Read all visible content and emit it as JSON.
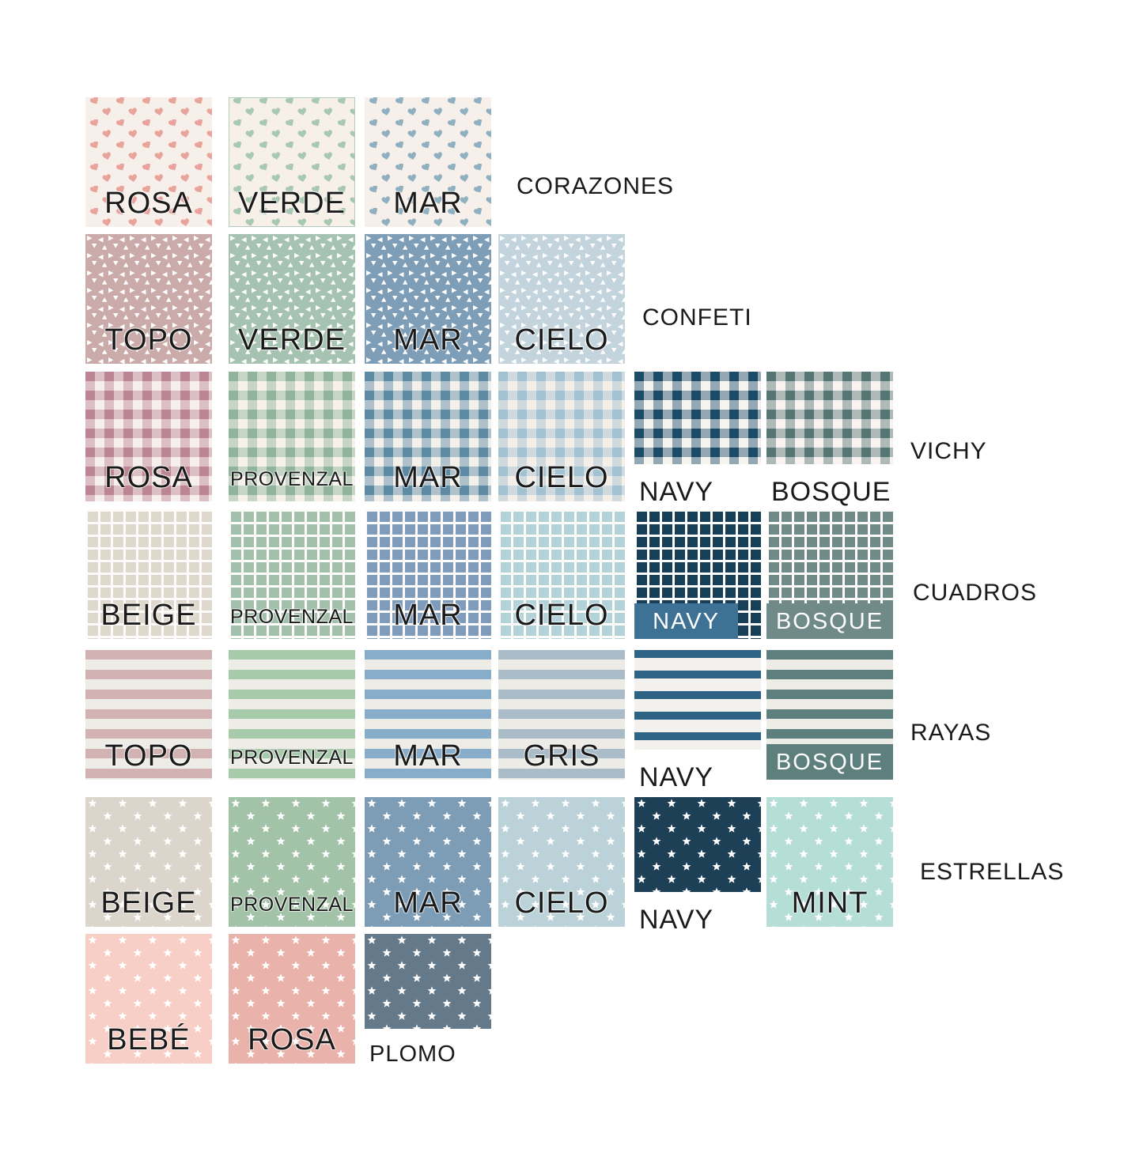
{
  "page": {
    "background": "#ffffff",
    "text_color": "#1a1a1a"
  },
  "rows": [
    {
      "group_label": "CORAZONES",
      "pattern": "hearts",
      "swatches": [
        {
          "label": "ROSA",
          "bg": "#f7f0ea",
          "fg": "#e8a39c",
          "label_style": "inside"
        },
        {
          "label": "VERDE",
          "bg": "#f6f0e9",
          "fg": "#a9c8b3",
          "label_style": "inside",
          "border": "#b2cdbb"
        },
        {
          "label": "MAR",
          "bg": "#f7f0ea",
          "fg": "#8fb0c0",
          "label_style": "inside"
        }
      ]
    },
    {
      "group_label": "CONFETI",
      "pattern": "confetti",
      "swatches": [
        {
          "label": "TOPO",
          "bg": "#cbabaa",
          "fg": "#ffffff",
          "label_style": "inside"
        },
        {
          "label": "VERDE",
          "bg": "#a6c3b2",
          "fg": "#ffffff",
          "label_style": "inside"
        },
        {
          "label": "MAR",
          "bg": "#7e9db6",
          "fg": "#ffffff",
          "label_style": "inside"
        },
        {
          "label": "CIELO",
          "bg": "#c4d4dd",
          "fg": "#ffffff",
          "label_style": "inside"
        }
      ]
    },
    {
      "group_label": "VICHY",
      "pattern": "vichy",
      "swatches": [
        {
          "label": "ROSA",
          "bg": "#f6efec",
          "fg": "#bb8595",
          "label_style": "inside"
        },
        {
          "label": "PROVENZAL",
          "bg": "#f6f1ea",
          "fg": "#8fb49b",
          "label_style": "inside",
          "small": true
        },
        {
          "label": "MAR",
          "bg": "#f3efe9",
          "fg": "#5d8aa5",
          "label_style": "inside"
        },
        {
          "label": "CIELO",
          "bg": "#f5efe9",
          "fg": "#a3c2d1",
          "label_style": "inside"
        },
        {
          "label": "NAVY",
          "bg": "#f7f3ef",
          "fg": "#1d4c68",
          "label_style": "below",
          "height": "short"
        },
        {
          "label": "BOSQUE",
          "bg": "#f7f3ef",
          "fg": "#567575",
          "label_style": "below",
          "height": "short"
        }
      ]
    },
    {
      "group_label": "CUADROS",
      "pattern": "grid",
      "swatches": [
        {
          "label": "BEIGE",
          "bg": "#fdfcfa",
          "fg": "#ded8cd",
          "label_style": "inside"
        },
        {
          "label": "PROVENZAL",
          "bg": "#fdfcfa",
          "fg": "#a3c0ad",
          "label_style": "inside",
          "small": true
        },
        {
          "label": "MAR",
          "bg": "#fdfcfa",
          "fg": "#7f9cbd",
          "label_style": "inside"
        },
        {
          "label": "CIELO",
          "bg": "#fdfcfa",
          "fg": "#b2d3d8",
          "label_style": "inside"
        },
        {
          "label": "NAVY",
          "bg": "#fdfcfa",
          "fg": "#173f58",
          "label_style": "bar",
          "bar_color": "#3e7294",
          "bar_width": "82%"
        },
        {
          "label": "BOSQUE",
          "bg": "#fdfcfa",
          "fg": "#708a87",
          "label_style": "bar",
          "bar_color": "#6f8a89",
          "bar_width": "100%"
        }
      ]
    },
    {
      "group_label": "RAYAS",
      "pattern": "stripes",
      "swatches": [
        {
          "label": "TOPO",
          "bg": "#edece7",
          "fg": "#d3b2b4",
          "label_style": "inside"
        },
        {
          "label": "PROVENZAL",
          "bg": "#edece7",
          "fg": "#a7caab",
          "label_style": "inside",
          "small": true
        },
        {
          "label": "MAR",
          "bg": "#edece7",
          "fg": "#88adca",
          "label_style": "inside"
        },
        {
          "label": "GRIS",
          "bg": "#ecebe6",
          "fg": "#aabcc8",
          "label_style": "inside"
        },
        {
          "label": "NAVY",
          "bg": "#f2f1ee",
          "fg": "#2e6386",
          "label_style": "below",
          "height": "short",
          "stripe": {
            "height": 10,
            "period": 26
          }
        },
        {
          "label": "BOSQUE",
          "bg": "#edece7",
          "fg": "#5d7f7e",
          "label_style": "bar",
          "bar_color": "#5d7f7e",
          "bar_width": "100%"
        }
      ]
    },
    {
      "group_label": "ESTRELLAS",
      "pattern": "stars",
      "swatches": [
        {
          "label": "BEIGE",
          "bg": "#dcd5cb",
          "fg": "#ffffff",
          "label_style": "inside"
        },
        {
          "label": "PROVENZAL",
          "bg": "#a3c3a8",
          "fg": "#ffffff",
          "label_style": "inside",
          "small": true
        },
        {
          "label": "MAR",
          "bg": "#7d9cb5",
          "fg": "#ffffff",
          "label_style": "inside"
        },
        {
          "label": "CIELO",
          "bg": "#bbd3d8",
          "fg": "#ffffff",
          "label_style": "inside"
        },
        {
          "label": "NAVY",
          "bg": "#1d4057",
          "fg": "#ffffff",
          "label_style": "below",
          "height": "short"
        },
        {
          "label": "MINT",
          "bg": "#b5ded6",
          "fg": "#ffffff",
          "label_style": "inside"
        }
      ]
    },
    {
      "group_label": null,
      "pattern": "stars",
      "swatches": [
        {
          "label": "BEBÉ",
          "bg": "#f7cfc7",
          "fg": "#ffffff",
          "label_style": "inside"
        },
        {
          "label": "ROSA",
          "bg": "#e9b2ab",
          "fg": "#ffffff",
          "label_style": "inside"
        },
        {
          "label": "PLOMO",
          "bg": "#64798a",
          "fg": "#ffffff",
          "label_style": "below",
          "height": "short",
          "small": true
        }
      ]
    }
  ]
}
